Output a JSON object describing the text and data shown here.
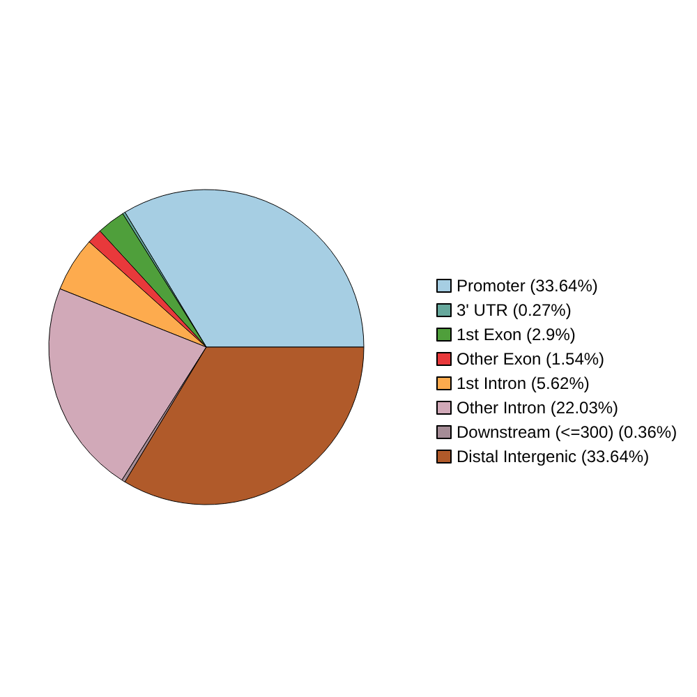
{
  "chart_data": {
    "type": "pie",
    "categories": [
      "Promoter (33.64%)",
      "3' UTR (0.27%)",
      "1st Exon (2.9%)",
      "Other Exon (1.54%)",
      "1st Intron (5.62%)",
      "Other Intron (22.03%)",
      "Downstream (<=300) (0.36%)",
      "Distal Intergenic (33.64%)"
    ],
    "values": [
      33.64,
      0.27,
      2.9,
      1.54,
      5.62,
      22.03,
      0.36,
      33.64
    ],
    "colors": [
      "#a6cee3",
      "#66a89c",
      "#4f9f3b",
      "#e8393b",
      "#fdab4e",
      "#d1a9b8",
      "#a58c96",
      "#b05a2a"
    ],
    "legend": "right"
  }
}
